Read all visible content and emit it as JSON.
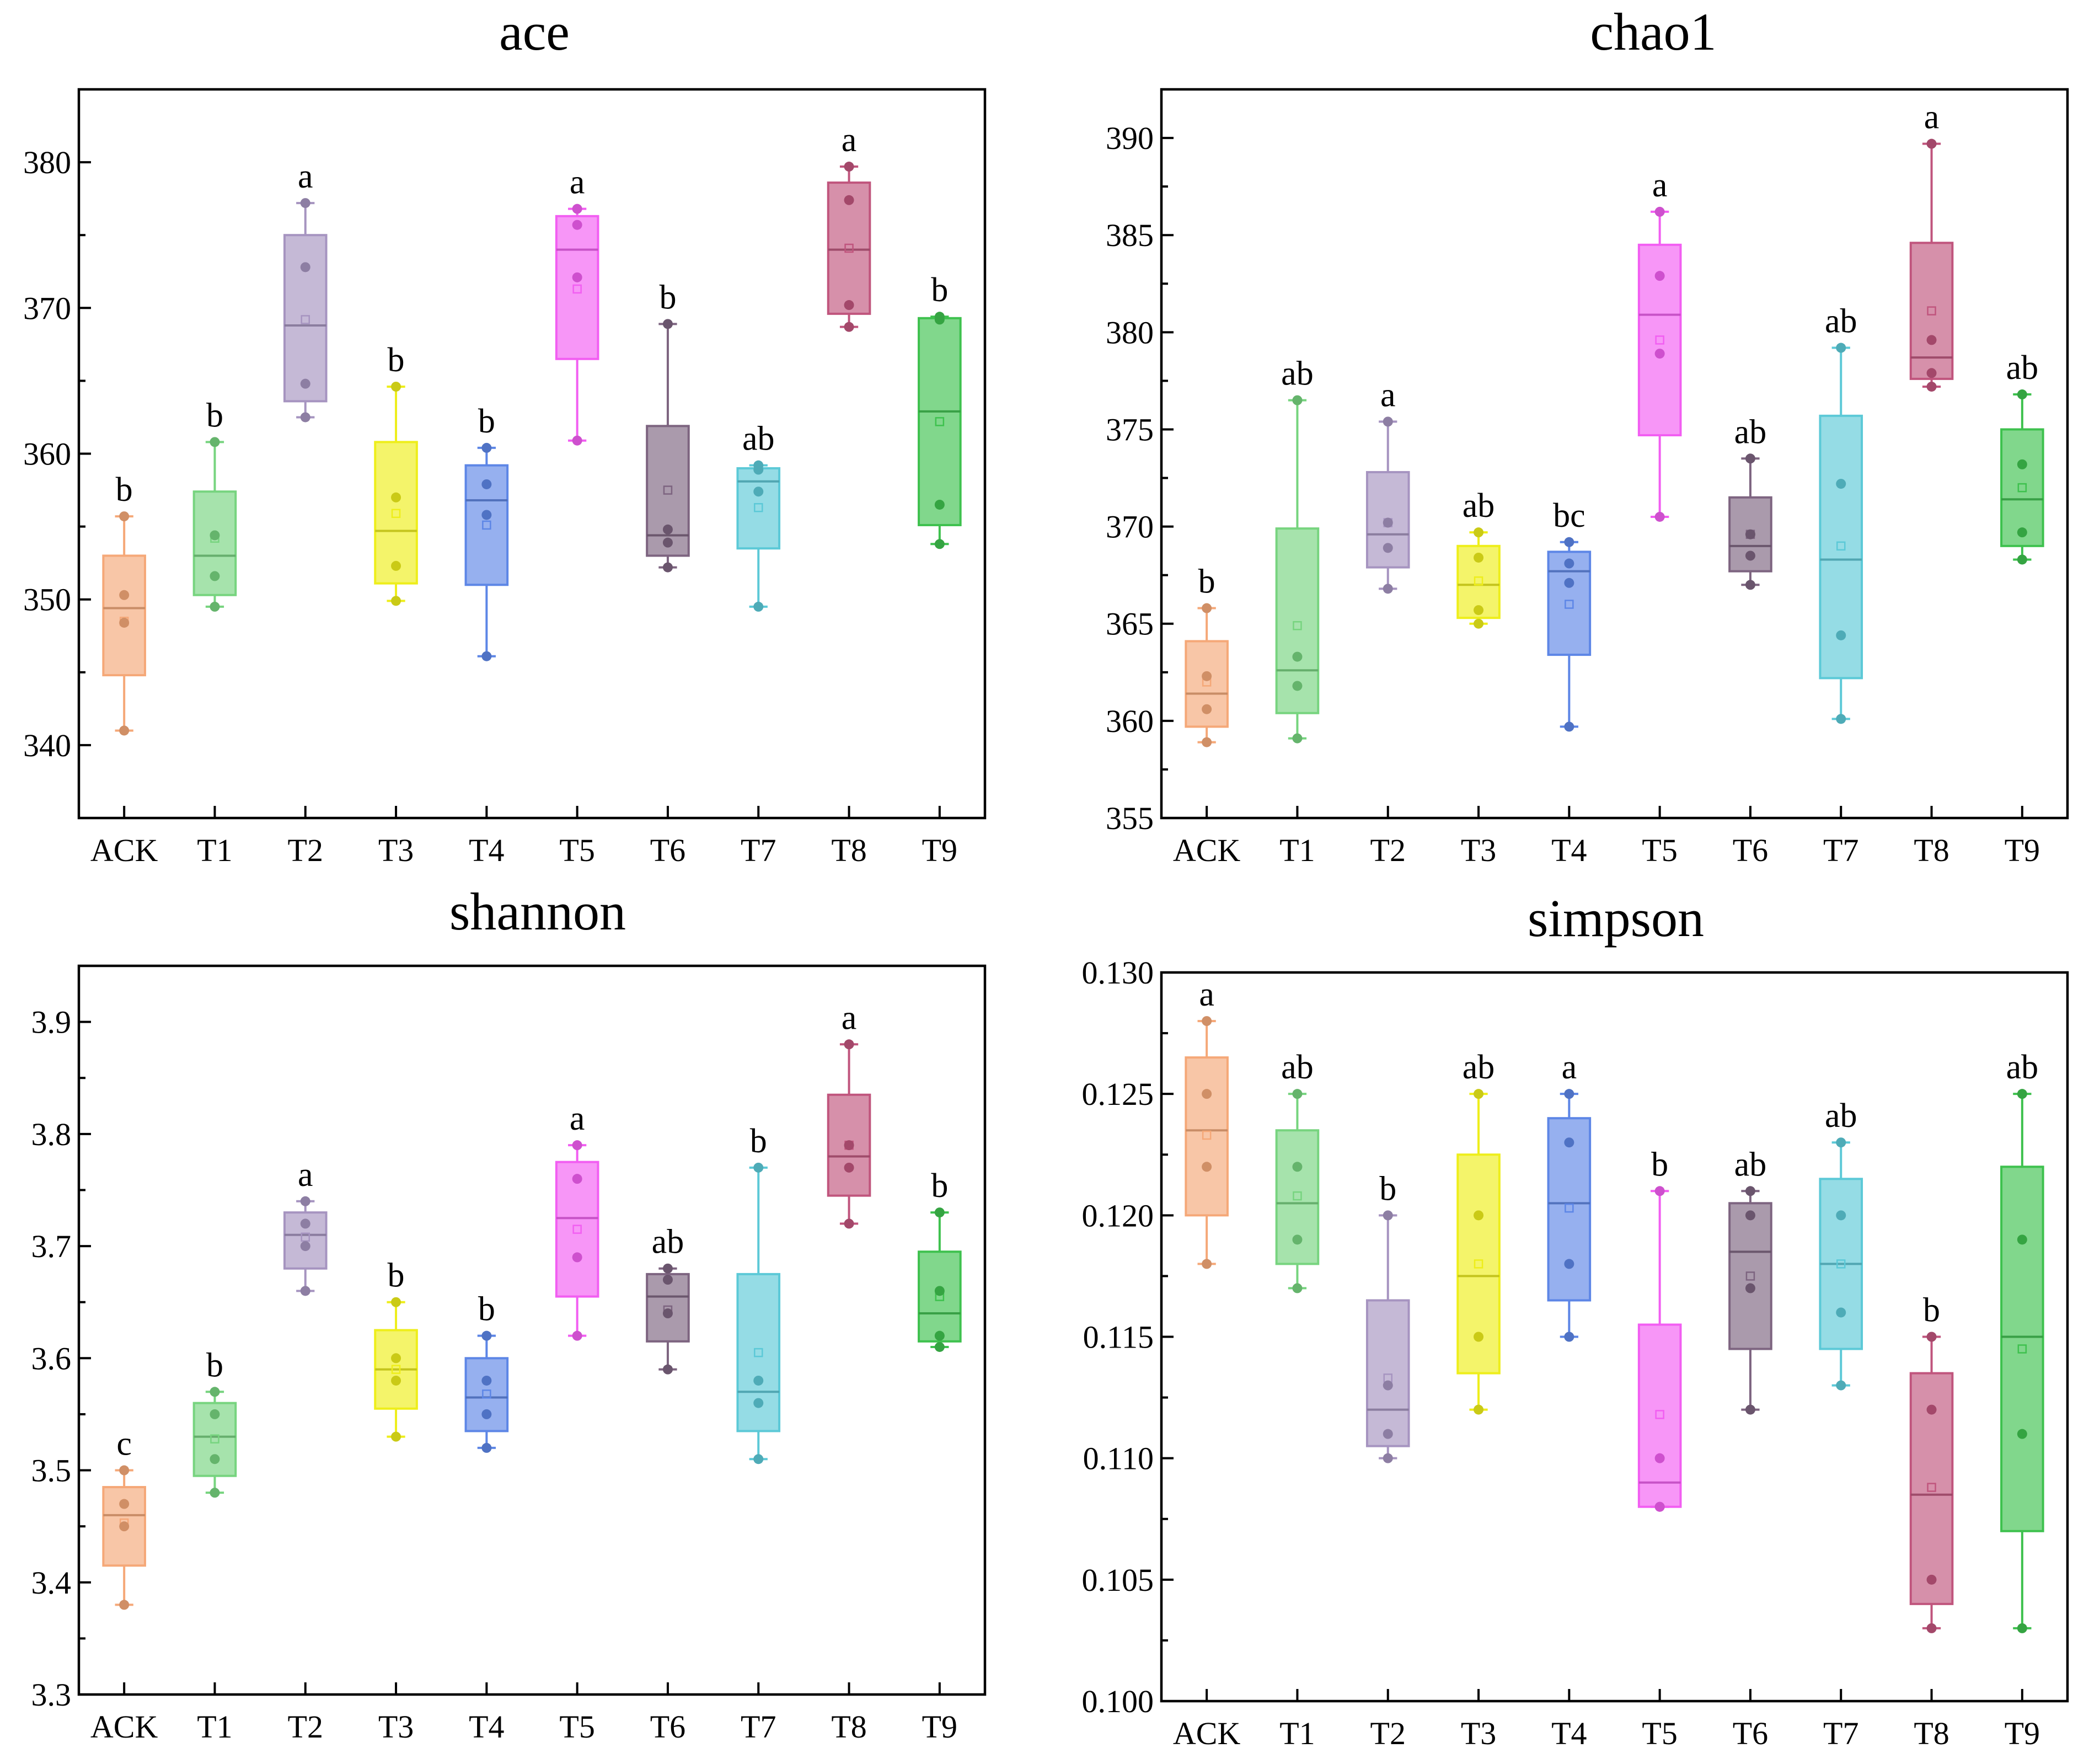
{
  "colors": {
    "ACK": "#f5a878",
    "T1": "#77d47f",
    "T2": "#a694c0",
    "T3": "#eeee1a",
    "T4": "#5d86e6",
    "T5": "#f25ef2",
    "T6": "#7d6480",
    "T7": "#5cc9d7",
    "T8": "#c0557d",
    "T9": "#3ec14e"
  },
  "chart_data": [
    {
      "id": "ace",
      "type": "box",
      "title": "ace",
      "categories": [
        "ACK",
        "T1",
        "T2",
        "T3",
        "T4",
        "T5",
        "T6",
        "T7",
        "T8",
        "T9"
      ],
      "ylim": [
        335,
        385
      ],
      "yticks": [
        340,
        350,
        360,
        370,
        380
      ],
      "ytick_labels": [
        "340",
        "350",
        "360",
        "370",
        "380"
      ],
      "boxes": [
        {
          "q1": 344.8,
          "median": 349.4,
          "q3": 353.0,
          "min": 341.0,
          "max": 355.7,
          "mean": 348.5,
          "points": [
            341.0,
            348.4,
            350.3,
            355.7
          ],
          "sig": "b"
        },
        {
          "q1": 350.3,
          "median": 353.0,
          "q3": 357.4,
          "min": 349.5,
          "max": 360.8,
          "mean": 354.2,
          "points": [
            349.5,
            351.6,
            354.4,
            360.8
          ],
          "sig": "b"
        },
        {
          "q1": 363.6,
          "median": 368.8,
          "q3": 375.0,
          "min": 362.5,
          "max": 377.2,
          "mean": 369.2,
          "points": [
            362.5,
            364.8,
            372.8,
            377.2
          ],
          "sig": "a"
        },
        {
          "q1": 351.1,
          "median": 354.7,
          "q3": 360.8,
          "min": 349.9,
          "max": 364.6,
          "mean": 355.9,
          "points": [
            349.9,
            352.3,
            357.0,
            364.6
          ],
          "sig": "b"
        },
        {
          "q1": 351.0,
          "median": 356.8,
          "q3": 359.2,
          "min": 346.1,
          "max": 360.4,
          "mean": 355.1,
          "points": [
            346.1,
            355.8,
            357.9,
            360.4
          ],
          "sig": "b"
        },
        {
          "q1": 366.5,
          "median": 374.0,
          "q3": 376.3,
          "min": 360.9,
          "max": 376.8,
          "mean": 371.3,
          "points": [
            360.9,
            372.1,
            375.7,
            376.8
          ],
          "sig": "a"
        },
        {
          "q1": 353.0,
          "median": 354.4,
          "q3": 361.9,
          "min": 352.2,
          "max": 368.9,
          "mean": 357.5,
          "points": [
            352.2,
            353.9,
            354.8,
            368.9
          ],
          "sig": "b"
        },
        {
          "q1": 353.5,
          "median": 358.1,
          "q3": 359.0,
          "min": 349.5,
          "max": 359.2,
          "mean": 356.3,
          "points": [
            349.5,
            357.4,
            358.9,
            359.2
          ],
          "sig": "ab"
        },
        {
          "q1": 369.6,
          "median": 374.0,
          "q3": 378.6,
          "min": 368.7,
          "max": 379.7,
          "mean": 374.1,
          "points": [
            368.7,
            370.2,
            377.4,
            379.7
          ],
          "sig": "a"
        },
        {
          "q1": 355.1,
          "median": 362.9,
          "q3": 369.3,
          "min": 353.8,
          "max": 369.4,
          "mean": 362.2,
          "points": [
            353.8,
            356.5,
            369.2,
            369.4
          ],
          "sig": "b"
        }
      ]
    },
    {
      "id": "chao1",
      "type": "box",
      "title": "chao1",
      "categories": [
        "ACK",
        "T1",
        "T2",
        "T3",
        "T4",
        "T5",
        "T6",
        "T7",
        "T8",
        "T9"
      ],
      "ylim": [
        355,
        392.5
      ],
      "yticks": [
        355,
        360,
        365,
        370,
        375,
        380,
        385,
        390
      ],
      "ytick_labels": [
        "355",
        "360",
        "365",
        "370",
        "375",
        "380",
        "385",
        "390"
      ],
      "boxes": [
        {
          "q1": 359.7,
          "median": 361.4,
          "q3": 364.1,
          "min": 358.9,
          "max": 365.8,
          "mean": 362.0,
          "points": [
            358.9,
            360.6,
            362.3,
            365.8
          ],
          "sig": "b"
        },
        {
          "q1": 360.4,
          "median": 362.6,
          "q3": 369.9,
          "min": 359.1,
          "max": 376.5,
          "mean": 364.9,
          "points": [
            359.1,
            361.8,
            363.3,
            376.5
          ],
          "sig": "ab"
        },
        {
          "q1": 367.9,
          "median": 369.6,
          "q3": 372.8,
          "min": 366.8,
          "max": 375.4,
          "mean": 370.2,
          "points": [
            366.8,
            368.9,
            370.2,
            375.4
          ],
          "sig": "a"
        },
        {
          "q1": 365.3,
          "median": 367.0,
          "q3": 369.0,
          "min": 365.0,
          "max": 369.7,
          "mean": 367.2,
          "points": [
            365.0,
            365.7,
            368.4,
            369.7
          ],
          "sig": "ab"
        },
        {
          "q1": 363.4,
          "median": 367.7,
          "q3": 368.7,
          "min": 359.7,
          "max": 369.2,
          "mean": 366.0,
          "points": [
            359.7,
            367.1,
            368.1,
            369.2
          ],
          "sig": "bc"
        },
        {
          "q1": 374.7,
          "median": 380.9,
          "q3": 384.5,
          "min": 370.5,
          "max": 386.2,
          "mean": 379.6,
          "points": [
            370.5,
            378.9,
            382.9,
            386.2
          ],
          "sig": "a"
        },
        {
          "q1": 367.7,
          "median": 369.0,
          "q3": 371.5,
          "min": 367.0,
          "max": 373.5,
          "mean": 369.6,
          "points": [
            367.0,
            368.5,
            369.6,
            373.5
          ],
          "sig": "ab"
        },
        {
          "q1": 362.2,
          "median": 368.3,
          "q3": 375.7,
          "min": 360.1,
          "max": 379.2,
          "mean": 369.0,
          "points": [
            360.1,
            364.4,
            372.2,
            379.2
          ],
          "sig": "ab"
        },
        {
          "q1": 377.6,
          "median": 378.7,
          "q3": 384.6,
          "min": 377.2,
          "max": 389.7,
          "mean": 381.1,
          "points": [
            377.2,
            377.9,
            379.6,
            389.7
          ],
          "sig": "a"
        },
        {
          "q1": 369.0,
          "median": 371.4,
          "q3": 375.0,
          "min": 368.3,
          "max": 376.8,
          "mean": 372.0,
          "points": [
            368.3,
            369.7,
            373.2,
            376.8
          ],
          "sig": "ab"
        }
      ]
    },
    {
      "id": "shannon",
      "type": "box",
      "title": "shannon",
      "categories": [
        "ACK",
        "T1",
        "T2",
        "T3",
        "T4",
        "T5",
        "T6",
        "T7",
        "T8",
        "T9"
      ],
      "ylim": [
        3.3,
        3.95
      ],
      "yticks": [
        3.3,
        3.4,
        3.5,
        3.6,
        3.7,
        3.8,
        3.9
      ],
      "ytick_labels": [
        "3.3",
        "3.4",
        "3.5",
        "3.6",
        "3.7",
        "3.8",
        "3.9"
      ],
      "boxes": [
        {
          "q1": 3.415,
          "median": 3.46,
          "q3": 3.485,
          "min": 3.38,
          "max": 3.5,
          "mean": 3.453,
          "points": [
            3.38,
            3.45,
            3.47,
            3.5
          ],
          "sig": "c"
        },
        {
          "q1": 3.495,
          "median": 3.53,
          "q3": 3.56,
          "min": 3.48,
          "max": 3.57,
          "mean": 3.528,
          "points": [
            3.48,
            3.51,
            3.55,
            3.57
          ],
          "sig": "b"
        },
        {
          "q1": 3.68,
          "median": 3.71,
          "q3": 3.73,
          "min": 3.66,
          "max": 3.74,
          "mean": 3.708,
          "points": [
            3.66,
            3.7,
            3.72,
            3.74
          ],
          "sig": "a"
        },
        {
          "q1": 3.555,
          "median": 3.59,
          "q3": 3.625,
          "min": 3.53,
          "max": 3.65,
          "mean": 3.59,
          "points": [
            3.53,
            3.58,
            3.6,
            3.65
          ],
          "sig": "b"
        },
        {
          "q1": 3.535,
          "median": 3.565,
          "q3": 3.6,
          "min": 3.52,
          "max": 3.62,
          "mean": 3.568,
          "points": [
            3.52,
            3.55,
            3.58,
            3.62
          ],
          "sig": "b"
        },
        {
          "q1": 3.655,
          "median": 3.725,
          "q3": 3.775,
          "min": 3.62,
          "max": 3.79,
          "mean": 3.715,
          "points": [
            3.62,
            3.69,
            3.76,
            3.79
          ],
          "sig": "a"
        },
        {
          "q1": 3.615,
          "median": 3.655,
          "q3": 3.675,
          "min": 3.59,
          "max": 3.68,
          "mean": 3.643,
          "points": [
            3.59,
            3.64,
            3.67,
            3.68
          ],
          "sig": "ab"
        },
        {
          "q1": 3.535,
          "median": 3.57,
          "q3": 3.675,
          "min": 3.51,
          "max": 3.77,
          "mean": 3.605,
          "points": [
            3.51,
            3.56,
            3.58,
            3.77
          ],
          "sig": "b"
        },
        {
          "q1": 3.745,
          "median": 3.78,
          "q3": 3.835,
          "min": 3.72,
          "max": 3.88,
          "mean": 3.79,
          "points": [
            3.72,
            3.77,
            3.79,
            3.88
          ],
          "sig": "a"
        },
        {
          "q1": 3.615,
          "median": 3.64,
          "q3": 3.695,
          "min": 3.61,
          "max": 3.73,
          "mean": 3.655,
          "points": [
            3.61,
            3.62,
            3.66,
            3.73
          ],
          "sig": "b"
        }
      ]
    },
    {
      "id": "simpson",
      "type": "box",
      "title": "simpson",
      "categories": [
        "ACK",
        "T1",
        "T2",
        "T3",
        "T4",
        "T5",
        "T6",
        "T7",
        "T8",
        "T9"
      ],
      "ylim": [
        0.1,
        0.13
      ],
      "yticks": [
        0.1,
        0.105,
        0.11,
        0.115,
        0.12,
        0.125,
        0.13
      ],
      "ytick_labels": [
        "0.100",
        "0.105",
        "0.110",
        "0.115",
        "0.120",
        "0.125",
        "0.130"
      ],
      "boxes": [
        {
          "q1": 0.12,
          "median": 0.1235,
          "q3": 0.1265,
          "min": 0.118,
          "max": 0.128,
          "mean": 0.1233,
          "points": [
            0.118,
            0.122,
            0.125,
            0.128
          ],
          "sig": "a"
        },
        {
          "q1": 0.118,
          "median": 0.1205,
          "q3": 0.1235,
          "min": 0.117,
          "max": 0.125,
          "mean": 0.1208,
          "points": [
            0.117,
            0.119,
            0.122,
            0.125
          ],
          "sig": "ab"
        },
        {
          "q1": 0.1105,
          "median": 0.112,
          "q3": 0.1165,
          "min": 0.11,
          "max": 0.12,
          "mean": 0.1133,
          "points": [
            0.11,
            0.111,
            0.113,
            0.12
          ],
          "sig": "b"
        },
        {
          "q1": 0.1135,
          "median": 0.1175,
          "q3": 0.1225,
          "min": 0.112,
          "max": 0.125,
          "mean": 0.118,
          "points": [
            0.112,
            0.115,
            0.12,
            0.125
          ],
          "sig": "ab"
        },
        {
          "q1": 0.1165,
          "median": 0.1205,
          "q3": 0.124,
          "min": 0.115,
          "max": 0.125,
          "mean": 0.1203,
          "points": [
            0.115,
            0.118,
            0.123,
            0.125
          ],
          "sig": "a"
        },
        {
          "q1": 0.108,
          "median": 0.109,
          "q3": 0.1155,
          "min": 0.108,
          "max": 0.121,
          "mean": 0.1118,
          "points": [
            0.108,
            0.108,
            0.11,
            0.121
          ],
          "sig": "b"
        },
        {
          "q1": 0.1145,
          "median": 0.1185,
          "q3": 0.1205,
          "min": 0.112,
          "max": 0.121,
          "mean": 0.1175,
          "points": [
            0.112,
            0.117,
            0.12,
            0.121
          ],
          "sig": "ab"
        },
        {
          "q1": 0.1145,
          "median": 0.118,
          "q3": 0.1215,
          "min": 0.113,
          "max": 0.123,
          "mean": 0.118,
          "points": [
            0.113,
            0.116,
            0.12,
            0.123
          ],
          "sig": "ab"
        },
        {
          "q1": 0.104,
          "median": 0.1085,
          "q3": 0.1135,
          "min": 0.103,
          "max": 0.115,
          "mean": 0.1088,
          "points": [
            0.103,
            0.105,
            0.112,
            0.115
          ],
          "sig": "b"
        },
        {
          "q1": 0.107,
          "median": 0.115,
          "q3": 0.122,
          "min": 0.103,
          "max": 0.125,
          "mean": 0.1145,
          "points": [
            0.103,
            0.111,
            0.119,
            0.125
          ],
          "sig": "ab"
        }
      ]
    }
  ]
}
